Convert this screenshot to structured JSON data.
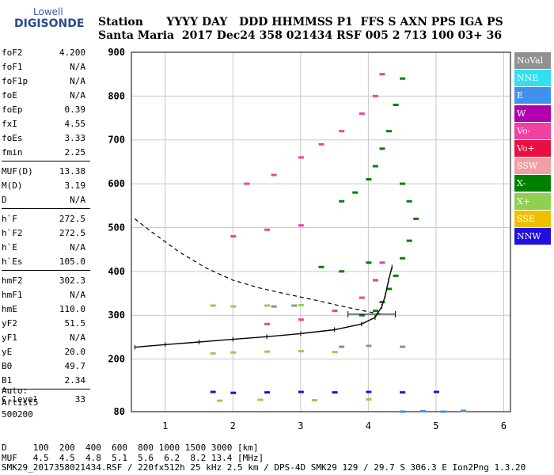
{
  "logo": {
    "line1": "Lowell",
    "line2": "DIGISONDE"
  },
  "header": {
    "labels_line": "Station      YYYY DAY   DDD HHMMSS P1  FFS S AXN PPS IGA PS",
    "values_line": "Santa Maria  2017 Dec24 358 021434 RSF 005 2 713 100 03+ 36"
  },
  "params_groups": [
    [
      {
        "k": "foF2",
        "v": "4.200"
      },
      {
        "k": "foF1",
        "v": "N/A"
      },
      {
        "k": "foF1p",
        "v": "N/A"
      },
      {
        "k": "foE",
        "v": "N/A"
      },
      {
        "k": "foEp",
        "v": "0.39"
      },
      {
        "k": "fxI",
        "v": "4.55"
      },
      {
        "k": "foEs",
        "v": "3.33"
      },
      {
        "k": "fmin",
        "v": "2.25"
      }
    ],
    [
      {
        "k": "MUF(D)",
        "v": "13.38"
      },
      {
        "k": "M(D)",
        "v": "3.19"
      },
      {
        "k": "D",
        "v": "N/A"
      }
    ],
    [
      {
        "k": "h`F",
        "v": "272.5"
      },
      {
        "k": "h`F2",
        "v": "272.5"
      },
      {
        "k": "h`E",
        "v": "N/A"
      },
      {
        "k": "h`Es",
        "v": "105.0"
      }
    ],
    [
      {
        "k": "hmF2",
        "v": "302.3"
      },
      {
        "k": "hmF1",
        "v": "N/A"
      },
      {
        "k": "hmE",
        "v": "110.0"
      },
      {
        "k": "yF2",
        "v": "51.5"
      },
      {
        "k": "yF1",
        "v": "N/A"
      },
      {
        "k": "yE",
        "v": "20.0"
      },
      {
        "k": "B0",
        "v": "49.7"
      },
      {
        "k": "B1",
        "v": "2.34"
      }
    ],
    [
      {
        "k": "C-level",
        "v": "33"
      }
    ]
  ],
  "auto": {
    "line1": "Auto:",
    "line2": "Artist5",
    "line3": "500200"
  },
  "legend": [
    {
      "label": "NoVal",
      "color": "#909090"
    },
    {
      "label": "NNE",
      "color": "#30e0f0"
    },
    {
      "label": "E",
      "color": "#4090f0"
    },
    {
      "label": "W",
      "color": "#b000b0"
    },
    {
      "label": "Vo-",
      "color": "#f040a0"
    },
    {
      "label": "Vo+",
      "color": "#e81040"
    },
    {
      "label": "SSW",
      "color": "#f0a0a0"
    },
    {
      "label": "X-",
      "color": "#008000"
    },
    {
      "label": "X+",
      "color": "#90d050"
    },
    {
      "label": "SSE",
      "color": "#f0c000"
    },
    {
      "label": "NNW",
      "color": "#2010e0"
    }
  ],
  "footer": {
    "line1": "D     100  200  400  600  800 1000 1500 3000 [km]",
    "line2": "MUF   4.5  4.5  4.8  5.1  5.6  6.2  8.2 13.4 [MHz]",
    "line3": "SMK29_2017358021434.RSF / 220fx512h 25 kHz 2.5 km / DPS-4D SMK29 129 / 29.7 S 306.3 E Ion2Png 1.3.20"
  },
  "chart_data": {
    "type": "scatter",
    "xlim": [
      0.5,
      6.1
    ],
    "ylim": [
      80,
      900
    ],
    "x_ticks": [
      1,
      2,
      3,
      4,
      5,
      6
    ],
    "y_ticks": [
      80,
      200,
      300,
      400,
      500,
      600,
      700,
      800,
      900
    ],
    "grid": true,
    "series": [
      {
        "name": "X-",
        "points": [
          [
            3.6,
            560
          ],
          [
            3.8,
            580
          ],
          [
            4.0,
            610
          ],
          [
            4.1,
            640
          ],
          [
            4.2,
            680
          ],
          [
            4.3,
            720
          ],
          [
            4.4,
            780
          ],
          [
            4.5,
            840
          ],
          [
            4.2,
            330
          ],
          [
            4.3,
            360
          ],
          [
            4.4,
            390
          ],
          [
            4.5,
            430
          ],
          [
            4.6,
            470
          ],
          [
            4.7,
            520
          ],
          [
            4.6,
            560
          ],
          [
            4.5,
            600
          ],
          [
            3.3,
            410
          ],
          [
            3.6,
            400
          ],
          [
            4.0,
            420
          ],
          [
            3.9,
            300
          ],
          [
            4.1,
            310
          ]
        ]
      },
      {
        "name": "Vo-",
        "points": [
          [
            2.2,
            600
          ],
          [
            2.6,
            620
          ],
          [
            3.0,
            660
          ],
          [
            3.3,
            690
          ],
          [
            3.6,
            720
          ],
          [
            3.9,
            760
          ],
          [
            4.1,
            800
          ],
          [
            4.2,
            850
          ],
          [
            2.5,
            280
          ],
          [
            3.0,
            290
          ],
          [
            3.5,
            310
          ],
          [
            3.9,
            340
          ],
          [
            4.1,
            380
          ],
          [
            4.2,
            420
          ],
          [
            2.0,
            480
          ],
          [
            2.5,
            495
          ],
          [
            3.0,
            505
          ]
        ]
      },
      {
        "name": "NNW",
        "points": [
          [
            1.7,
            125
          ],
          [
            2.0,
            123
          ],
          [
            2.5,
            124
          ],
          [
            3.0,
            125
          ],
          [
            3.5,
            124
          ],
          [
            4.0,
            125
          ],
          [
            4.5,
            124
          ],
          [
            5.0,
            125
          ]
        ]
      },
      {
        "name": "X+",
        "points": [
          [
            1.7,
            322
          ],
          [
            2.0,
            320
          ],
          [
            2.5,
            322
          ],
          [
            3.0,
            323
          ],
          [
            1.7,
            213
          ],
          [
            2.0,
            215
          ],
          [
            2.5,
            217
          ],
          [
            3.0,
            218
          ],
          [
            3.5,
            216
          ],
          [
            1.8,
            105
          ],
          [
            2.4,
            107
          ],
          [
            3.2,
            106
          ],
          [
            4.0,
            108
          ]
        ]
      },
      {
        "name": "E",
        "points": [
          [
            4.5,
            80
          ],
          [
            4.8,
            81
          ],
          [
            5.1,
            80
          ],
          [
            5.4,
            82
          ]
        ]
      },
      {
        "name": "NoVal",
        "points": [
          [
            3.6,
            228
          ],
          [
            4.0,
            230
          ],
          [
            4.5,
            228
          ],
          [
            2.6,
            320
          ],
          [
            2.9,
            322
          ]
        ]
      }
    ],
    "profile_curve": [
      [
        0.55,
        520
      ],
      [
        0.8,
        490
      ],
      [
        1.2,
        445
      ],
      [
        1.6,
        408
      ],
      [
        2.0,
        380
      ],
      [
        2.4,
        362
      ],
      [
        2.8,
        348
      ],
      [
        3.2,
        335
      ],
      [
        3.6,
        321
      ],
      [
        4.0,
        308
      ],
      [
        4.2,
        302
      ]
    ],
    "virtual_height_trace": [
      [
        0.55,
        227
      ],
      [
        1.0,
        233
      ],
      [
        1.5,
        239
      ],
      [
        2.0,
        245
      ],
      [
        2.5,
        251
      ],
      [
        3.0,
        258
      ],
      [
        3.5,
        267
      ],
      [
        3.9,
        280
      ],
      [
        4.1,
        295
      ],
      [
        4.2,
        320
      ],
      [
        4.25,
        345
      ],
      [
        4.3,
        380
      ],
      [
        4.35,
        410
      ]
    ],
    "hmf2_marker": {
      "x_range": [
        3.7,
        4.4
      ],
      "y": 302.3
    }
  }
}
